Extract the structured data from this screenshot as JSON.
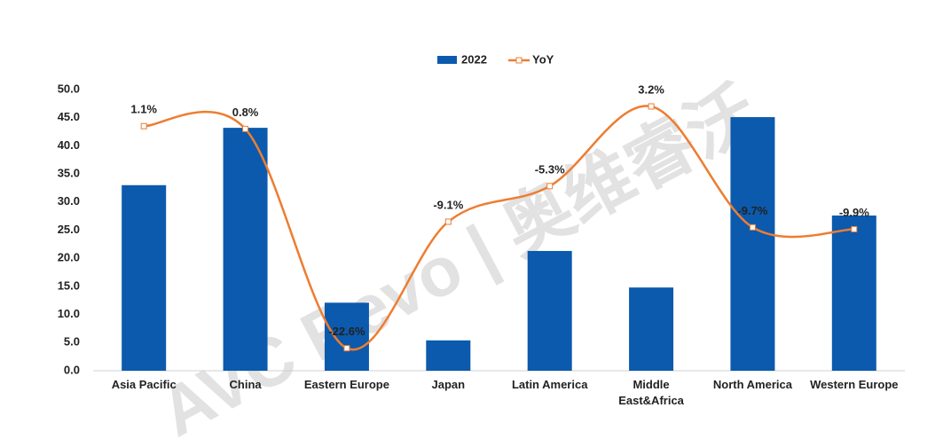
{
  "chart_data": {
    "type": "bar-line",
    "watermark": "AVC Revo | 奥维睿沃",
    "categories": [
      "Asia Pacific",
      "China",
      "Eastern Europe",
      "Japan",
      "Latin America",
      "Middle East&Africa",
      "North America",
      "Western Europe"
    ],
    "series": [
      {
        "name": "2022",
        "type": "bar",
        "color": "#0b5aad",
        "values": [
          33.0,
          43.2,
          12.1,
          5.4,
          21.3,
          14.8,
          45.1,
          27.6
        ]
      },
      {
        "name": "YoY",
        "type": "line",
        "axis": "y2",
        "color": "#ed7d31",
        "values": [
          1.1,
          0.8,
          -22.6,
          -9.1,
          -5.3,
          3.2,
          -9.7,
          -9.9
        ],
        "value_labels": [
          "1.1%",
          "0.8%",
          "-22.6%",
          "-9.1%",
          "-5.3%",
          "3.2%",
          "-9.7%",
          "-9.9%"
        ]
      }
    ],
    "ylim": [
      0,
      50
    ],
    "yticks": [
      {
        "value": 0,
        "label": "0.0"
      },
      {
        "value": 5,
        "label": "5.0"
      },
      {
        "value": 10,
        "label": "10.0"
      },
      {
        "value": 15,
        "label": "15.0"
      },
      {
        "value": 20,
        "label": "20.0"
      },
      {
        "value": 25,
        "label": "25.0"
      },
      {
        "value": 30,
        "label": "30.0"
      },
      {
        "value": 35,
        "label": "35.0"
      },
      {
        "value": 40,
        "label": "40.0"
      },
      {
        "value": 45,
        "label": "45.0"
      },
      {
        "value": 50,
        "label": "50.0"
      }
    ],
    "y2lim": [
      -25,
      5
    ],
    "legend": "top"
  }
}
